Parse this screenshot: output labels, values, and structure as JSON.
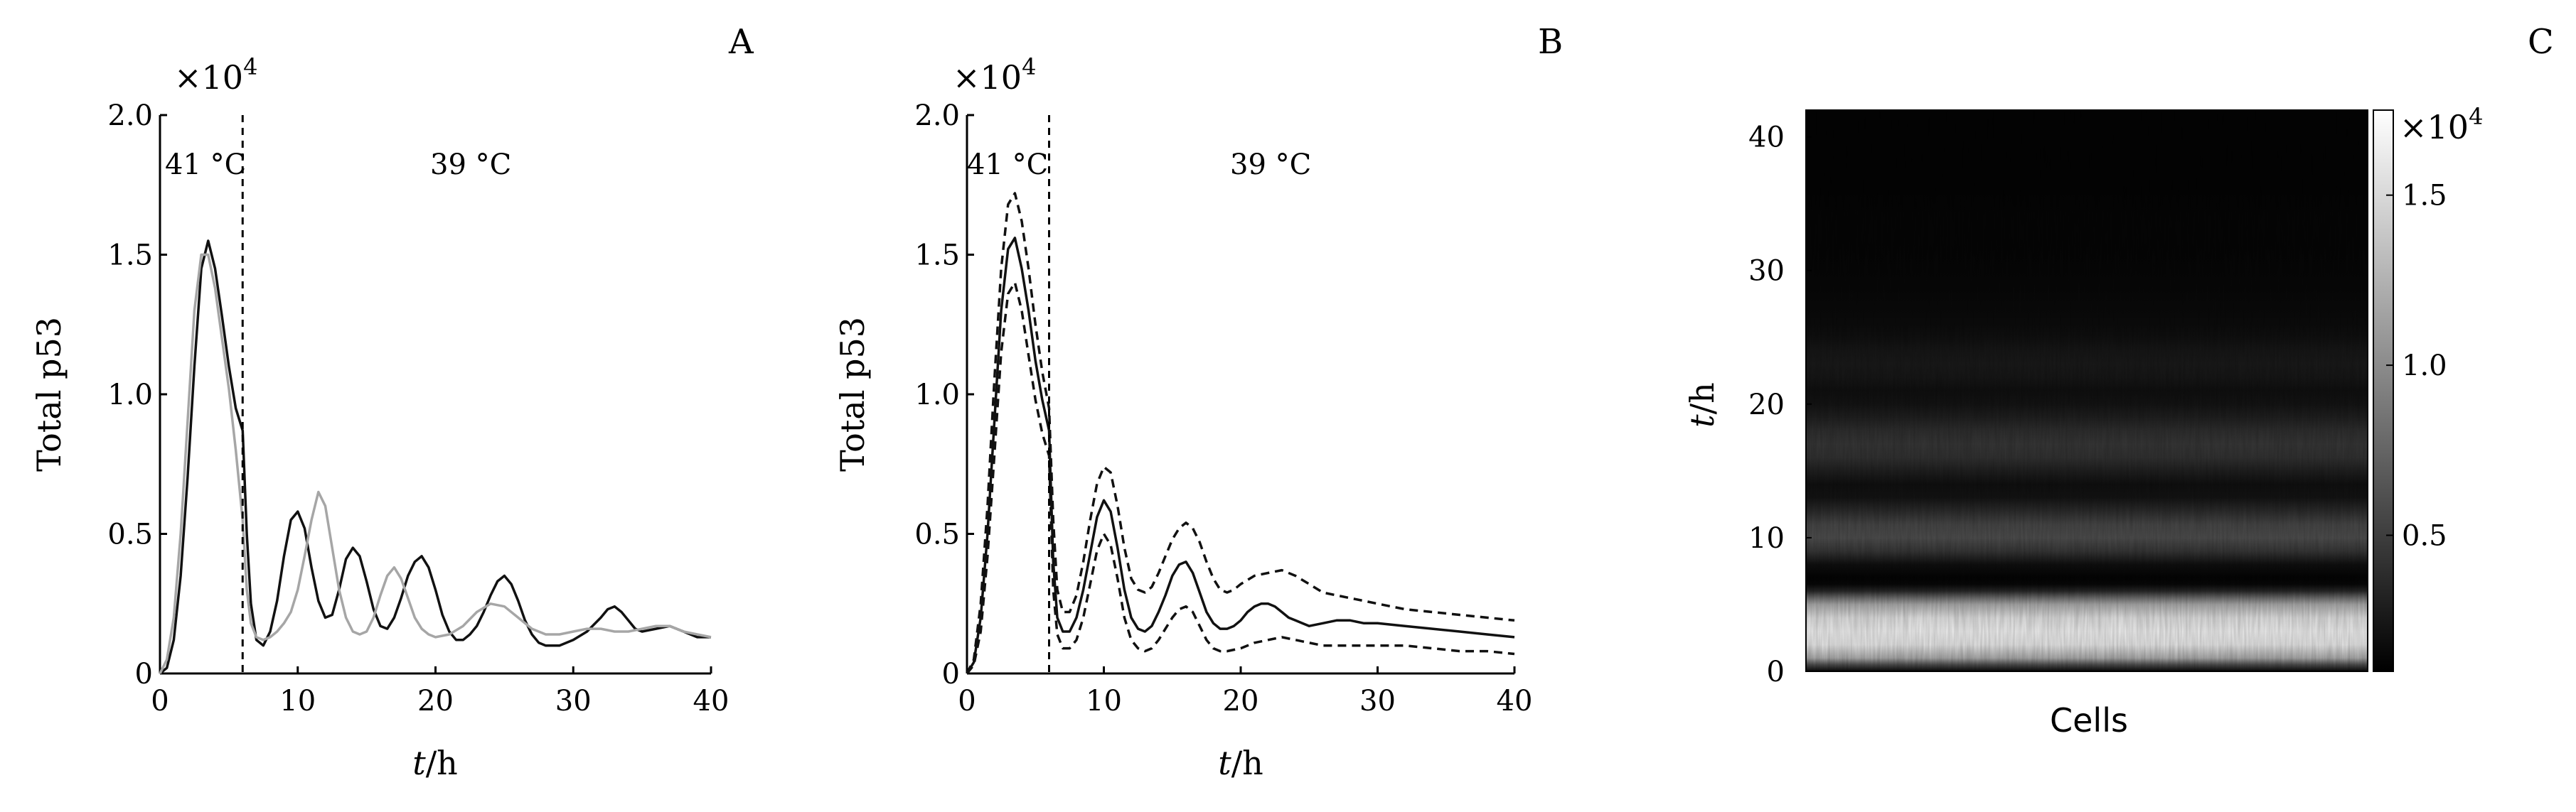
{
  "chart_data": [
    {
      "panel_label": "A",
      "type": "line",
      "xlabel_italic": "t",
      "xlabel_rest": "/h",
      "ylabel": "Total p53",
      "xlim": [
        0,
        40
      ],
      "ylim": [
        0,
        2.0
      ],
      "x_ticks": [
        "0",
        "10",
        "20",
        "30",
        "40"
      ],
      "y_ticks": [
        "0",
        "0.5",
        "1.0",
        "1.5",
        "2.0"
      ],
      "y_multiplier": "×10",
      "y_multiplier_exp": "4",
      "annotations": [
        "41 °C",
        "39 °C"
      ],
      "vline_x": 6,
      "grid": false,
      "series": [
        {
          "style": "solid",
          "color": "#111111",
          "x": [
            0,
            0.5,
            1,
            1.5,
            2,
            2.5,
            3,
            3.5,
            4,
            4.5,
            5,
            5.5,
            6,
            6.3,
            6.6,
            7,
            7.5,
            8,
            8.5,
            9,
            9.5,
            10,
            10.5,
            11,
            11.5,
            12,
            12.5,
            13,
            13.5,
            14,
            14.5,
            15,
            15.5,
            16,
            16.5,
            17,
            17.5,
            18,
            18.5,
            19,
            19.5,
            20,
            20.5,
            21,
            21.5,
            22,
            22.5,
            23,
            23.5,
            24,
            24.5,
            25,
            25.5,
            26,
            26.5,
            27,
            27.5,
            28,
            28.5,
            29,
            29.5,
            30,
            31,
            32,
            32.5,
            33,
            33.5,
            34,
            34.5,
            35,
            36,
            37,
            38,
            39,
            40
          ],
          "y": [
            0,
            0.02,
            0.12,
            0.35,
            0.7,
            1.1,
            1.45,
            1.55,
            1.45,
            1.28,
            1.1,
            0.95,
            0.87,
            0.5,
            0.25,
            0.12,
            0.1,
            0.15,
            0.26,
            0.42,
            0.55,
            0.58,
            0.52,
            0.38,
            0.26,
            0.2,
            0.21,
            0.3,
            0.41,
            0.45,
            0.42,
            0.33,
            0.23,
            0.17,
            0.16,
            0.2,
            0.27,
            0.35,
            0.4,
            0.42,
            0.38,
            0.3,
            0.21,
            0.15,
            0.12,
            0.12,
            0.14,
            0.17,
            0.22,
            0.28,
            0.33,
            0.35,
            0.32,
            0.26,
            0.19,
            0.14,
            0.11,
            0.1,
            0.1,
            0.1,
            0.11,
            0.12,
            0.15,
            0.2,
            0.23,
            0.24,
            0.22,
            0.19,
            0.16,
            0.15,
            0.16,
            0.17,
            0.15,
            0.13,
            0.13
          ]
        },
        {
          "style": "solid",
          "color": "#a6a6a6",
          "x": [
            0,
            0.5,
            1,
            1.5,
            2,
            2.5,
            3,
            3.5,
            4,
            4.5,
            5,
            5.5,
            6,
            6.3,
            6.6,
            7,
            7.5,
            8,
            8.5,
            9,
            9.5,
            10,
            10.5,
            11,
            11.5,
            12,
            12.5,
            13,
            13.5,
            14,
            14.5,
            15,
            15.5,
            16,
            16.5,
            17,
            17.5,
            18,
            18.5,
            19,
            19.5,
            20,
            21,
            22,
            23,
            24,
            25,
            26,
            27,
            28,
            29,
            30,
            31,
            32,
            33,
            34,
            35,
            36,
            37,
            38,
            39,
            40
          ],
          "y": [
            0,
            0.05,
            0.2,
            0.5,
            0.9,
            1.3,
            1.5,
            1.5,
            1.38,
            1.2,
            1.02,
            0.8,
            0.55,
            0.3,
            0.18,
            0.13,
            0.12,
            0.13,
            0.15,
            0.18,
            0.22,
            0.3,
            0.42,
            0.55,
            0.65,
            0.6,
            0.45,
            0.3,
            0.2,
            0.15,
            0.14,
            0.15,
            0.2,
            0.28,
            0.35,
            0.38,
            0.34,
            0.27,
            0.2,
            0.16,
            0.14,
            0.13,
            0.14,
            0.17,
            0.22,
            0.25,
            0.24,
            0.2,
            0.16,
            0.14,
            0.14,
            0.15,
            0.16,
            0.16,
            0.15,
            0.15,
            0.16,
            0.17,
            0.17,
            0.15,
            0.14,
            0.13
          ]
        }
      ]
    },
    {
      "panel_label": "B",
      "type": "line",
      "xlabel_italic": "t",
      "xlabel_rest": "/h",
      "ylabel": "Total p53",
      "xlim": [
        0,
        40
      ],
      "ylim": [
        0,
        2.0
      ],
      "x_ticks": [
        "0",
        "10",
        "20",
        "30",
        "40"
      ],
      "y_ticks": [
        "0",
        "0.5",
        "1.0",
        "1.5",
        "2.0"
      ],
      "y_multiplier": "×10",
      "y_multiplier_exp": "4",
      "annotations": [
        "41 °C",
        "39 °C"
      ],
      "vline_x": 6,
      "grid": false,
      "series": [
        {
          "style": "solid",
          "color": "#111111",
          "x": [
            0,
            0.5,
            1,
            1.5,
            2,
            2.5,
            3,
            3.5,
            4,
            4.5,
            5,
            5.5,
            6,
            6.3,
            6.6,
            7,
            7.5,
            8,
            8.5,
            9,
            9.5,
            10,
            10.5,
            11,
            11.5,
            12,
            12.5,
            13,
            13.5,
            14,
            14.5,
            15,
            15.5,
            16,
            16.5,
            17,
            17.5,
            18,
            18.5,
            19,
            19.5,
            20,
            20.5,
            21,
            21.5,
            22,
            22.5,
            23,
            23.5,
            24,
            24.5,
            25,
            26,
            27,
            28,
            29,
            30,
            32,
            34,
            36,
            38,
            40
          ],
          "y": [
            0,
            0.04,
            0.2,
            0.5,
            0.9,
            1.3,
            1.52,
            1.56,
            1.45,
            1.3,
            1.12,
            0.98,
            0.87,
            0.4,
            0.2,
            0.15,
            0.15,
            0.2,
            0.3,
            0.43,
            0.56,
            0.62,
            0.58,
            0.45,
            0.3,
            0.2,
            0.16,
            0.15,
            0.17,
            0.22,
            0.28,
            0.35,
            0.39,
            0.4,
            0.36,
            0.29,
            0.22,
            0.18,
            0.16,
            0.16,
            0.17,
            0.19,
            0.22,
            0.24,
            0.25,
            0.25,
            0.24,
            0.22,
            0.2,
            0.19,
            0.18,
            0.17,
            0.18,
            0.19,
            0.19,
            0.18,
            0.18,
            0.17,
            0.16,
            0.15,
            0.14,
            0.13
          ]
        },
        {
          "style": "dashed",
          "color": "#111111",
          "x": [
            0,
            0.5,
            1,
            1.5,
            2,
            2.5,
            3,
            3.5,
            4,
            4.5,
            5,
            5.5,
            6,
            6.3,
            6.6,
            7,
            7.5,
            8,
            8.5,
            9,
            9.5,
            10,
            10.5,
            11,
            11.5,
            12,
            12.5,
            13,
            13.5,
            14,
            14.5,
            15,
            15.5,
            16,
            16.5,
            17,
            17.5,
            18,
            18.5,
            19,
            19.5,
            20,
            21,
            22,
            23,
            24,
            25,
            26,
            27,
            28,
            29,
            30,
            32,
            34,
            36,
            38,
            40
          ],
          "y": [
            0,
            0.05,
            0.25,
            0.6,
            1.05,
            1.45,
            1.68,
            1.72,
            1.62,
            1.45,
            1.25,
            1.08,
            0.95,
            0.55,
            0.3,
            0.22,
            0.22,
            0.28,
            0.4,
            0.55,
            0.68,
            0.74,
            0.72,
            0.6,
            0.45,
            0.34,
            0.3,
            0.29,
            0.31,
            0.36,
            0.42,
            0.48,
            0.52,
            0.54,
            0.52,
            0.47,
            0.4,
            0.34,
            0.3,
            0.29,
            0.3,
            0.32,
            0.35,
            0.36,
            0.37,
            0.35,
            0.32,
            0.29,
            0.28,
            0.27,
            0.26,
            0.25,
            0.23,
            0.22,
            0.21,
            0.2,
            0.19
          ]
        },
        {
          "style": "dashed",
          "color": "#111111",
          "x": [
            0,
            0.5,
            1,
            1.5,
            2,
            2.5,
            3,
            3.5,
            4,
            4.5,
            5,
            5.5,
            6,
            6.3,
            6.6,
            7,
            7.5,
            8,
            8.5,
            9,
            9.5,
            10,
            10.5,
            11,
            11.5,
            12,
            12.5,
            13,
            13.5,
            14,
            14.5,
            15,
            15.5,
            16,
            16.5,
            17,
            17.5,
            18,
            18.5,
            19,
            20,
            21,
            22,
            23,
            24,
            25,
            26,
            27,
            28,
            30,
            32,
            34,
            36,
            38,
            40
          ],
          "y": [
            0,
            0.03,
            0.15,
            0.42,
            0.78,
            1.15,
            1.36,
            1.4,
            1.3,
            1.14,
            0.98,
            0.86,
            0.78,
            0.3,
            0.14,
            0.09,
            0.09,
            0.12,
            0.2,
            0.32,
            0.44,
            0.5,
            0.46,
            0.34,
            0.2,
            0.12,
            0.09,
            0.08,
            0.09,
            0.12,
            0.16,
            0.2,
            0.23,
            0.24,
            0.22,
            0.17,
            0.12,
            0.09,
            0.08,
            0.08,
            0.09,
            0.11,
            0.12,
            0.13,
            0.12,
            0.11,
            0.1,
            0.1,
            0.1,
            0.1,
            0.1,
            0.09,
            0.08,
            0.08,
            0.07
          ]
        }
      ]
    },
    {
      "panel_label": "C",
      "type": "heatmap",
      "xlabel": "Cells",
      "ylabel_italic": "t",
      "ylabel_rest": "/h",
      "ylim": [
        0,
        42
      ],
      "y_ticks": [
        "0",
        "10",
        "20",
        "30",
        "40"
      ],
      "colorbar_ticks": [
        "0.5",
        "1.0",
        "1.5"
      ],
      "colorbar_range": [
        0.1,
        1.75
      ],
      "colorbar_multiplier": "×10",
      "colorbar_multiplier_exp": "4",
      "colormap": "gray",
      "mean_profile": {
        "t": [
          0,
          0.5,
          1,
          2,
          3,
          4,
          5,
          5.5,
          6,
          6.5,
          7,
          8,
          9,
          10,
          11,
          12,
          13,
          14,
          15,
          16,
          17,
          18,
          19,
          20,
          21,
          22,
          23,
          24,
          25,
          26,
          28,
          30,
          32,
          34,
          36,
          38,
          40,
          42
        ],
        "value": [
          0.15,
          0.6,
          1.2,
          1.6,
          1.65,
          1.55,
          1.2,
          0.8,
          0.35,
          0.15,
          0.12,
          0.2,
          0.45,
          0.6,
          0.55,
          0.38,
          0.22,
          0.2,
          0.3,
          0.42,
          0.45,
          0.4,
          0.3,
          0.22,
          0.2,
          0.24,
          0.26,
          0.24,
          0.2,
          0.17,
          0.15,
          0.14,
          0.13,
          0.13,
          0.12,
          0.12,
          0.12,
          0.12
        ]
      }
    }
  ]
}
